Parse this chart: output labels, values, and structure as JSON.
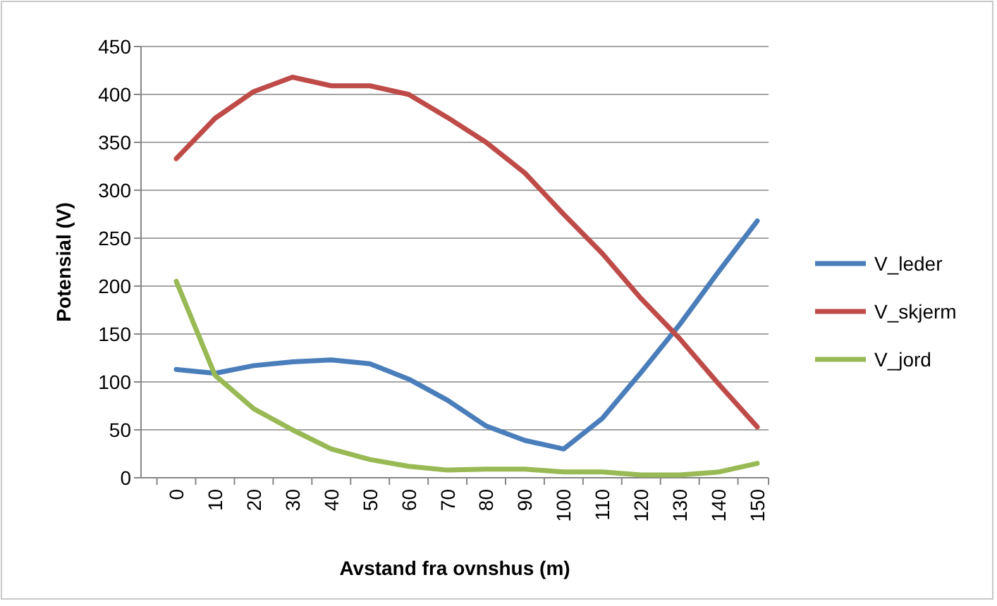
{
  "chart_data": {
    "type": "line",
    "xlabel": "Avstand fra ovnshus (m)",
    "ylabel": "Potensial (V)",
    "categories": [
      "0",
      "10",
      "20",
      "30",
      "40",
      "50",
      "60",
      "70",
      "80",
      "90",
      "100",
      "110",
      "120",
      "130",
      "140",
      "150"
    ],
    "series": [
      {
        "name": "V_leder",
        "color": "#4a7ebb",
        "values": [
          113,
          109,
          117,
          121,
          123,
          119,
          103,
          81,
          54,
          39,
          30,
          62,
          110,
          160,
          215,
          268
        ]
      },
      {
        "name": "V_skjerm",
        "color": "#be4b48",
        "values": [
          333,
          375,
          403,
          418,
          409,
          409,
          400,
          376,
          350,
          318,
          275,
          234,
          187,
          145,
          98,
          53
        ]
      },
      {
        "name": "V_jord",
        "color": "#98b954",
        "values": [
          205,
          107,
          72,
          50,
          30,
          19,
          12,
          8,
          9,
          9,
          6,
          6,
          3,
          3,
          6,
          15
        ]
      }
    ],
    "ylim": [
      0,
      450
    ],
    "yticks": [
      0,
      50,
      100,
      150,
      200,
      250,
      300,
      350,
      400,
      450
    ],
    "grid": "y",
    "legend": "right",
    "marker": "none",
    "line_style": "solid"
  }
}
